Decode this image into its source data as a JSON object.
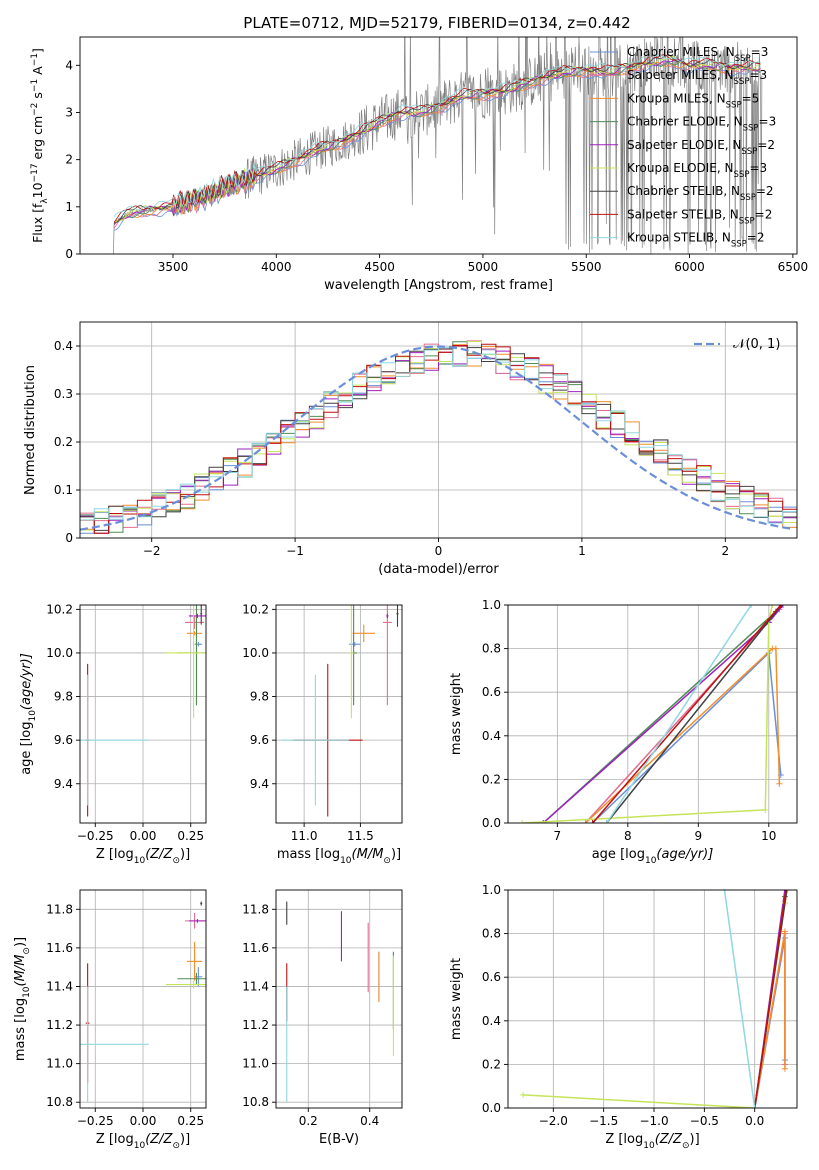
{
  "figure": {
    "title": "PLATE=0712, MJD=52179, FIBERID=0134, z=0.442",
    "colors": {
      "axis": "#000000",
      "grid": "#b0b0b0",
      "spectrum": "#808080",
      "normal_curve": "#6a8fd8"
    }
  },
  "legend_series": [
    {
      "pre": "Chabrier MILES, N",
      "sub": "SSP",
      "post": "=3",
      "color": "#6a8fd8"
    },
    {
      "pre": "Salpeter MILES, N",
      "sub": "SSP",
      "post": "=3",
      "color": "#e36c8f"
    },
    {
      "pre": "Kroupa MILES, N",
      "sub": "SSP",
      "post": "=5",
      "color": "#f28e2b"
    },
    {
      "pre": "Chabrier ELODIE, N",
      "sub": "SSP",
      "post": "=3",
      "color": "#4e8b55"
    },
    {
      "pre": "Salpeter ELODIE, N",
      "sub": "SSP",
      "post": "=2",
      "color": "#a020c0"
    },
    {
      "pre": "Kroupa ELODIE, N",
      "sub": "SSP",
      "post": "=3",
      "color": "#c5e45a"
    },
    {
      "pre": "Chabrier STELIB, N",
      "sub": "SSP",
      "post": "=2",
      "color": "#404040"
    },
    {
      "pre": "Salpeter STELIB, N",
      "sub": "SSP",
      "post": "=2",
      "color": "#c01010"
    },
    {
      "pre": "Kroupa STELIB, N",
      "sub": "SSP",
      "post": "=2",
      "color": "#8fd8e0"
    }
  ],
  "chart_data": [
    {
      "id": "spectrum",
      "type": "line",
      "title": "PLATE=0712, MJD=52179, FIBERID=0134, z=0.442",
      "xlabel": "wavelength [Angstrom, rest frame]",
      "ylabel_parts": {
        "pre": "Flux [f",
        "sub1": "λ",
        "mid": "10",
        "sup1": "−17",
        "post1": " erg cm",
        "sup2": "−2",
        "post2": " s",
        "sup3": "−1",
        "post3": " A",
        "sup4": "−1",
        "post4": "]"
      },
      "xlim": [
        3050,
        6520
      ],
      "ylim": [
        0,
        4.6
      ],
      "xticks": [
        3500,
        4000,
        4500,
        5000,
        5500,
        6000,
        6500
      ],
      "yticks": [
        0,
        1,
        2,
        3,
        4
      ],
      "grid": false,
      "legend_position": "top-right",
      "continuum_knots": {
        "x": [
          3200,
          3280,
          3400,
          3500,
          3600,
          3700,
          3800,
          3900,
          4000,
          4100,
          4200,
          4300,
          4400,
          4500,
          4600,
          4700,
          4800,
          4900,
          5000,
          5100,
          5200,
          5300,
          5400,
          5500,
          5600,
          5700,
          5800,
          5900,
          6000,
          6100,
          6200,
          6300
        ],
        "y": [
          0.6,
          0.85,
          0.95,
          1.0,
          1.15,
          1.3,
          1.5,
          1.65,
          1.8,
          2.0,
          2.2,
          2.35,
          2.55,
          2.8,
          3.0,
          3.0,
          3.15,
          3.35,
          3.4,
          3.45,
          3.6,
          3.75,
          3.85,
          3.9,
          3.85,
          3.95,
          4.05,
          4.1,
          4.0,
          4.0,
          3.95,
          3.95
        ]
      }
    },
    {
      "id": "residuals",
      "type": "line",
      "xlabel": "(data-model)/error",
      "ylabel": "Normed distribution",
      "xlim": [
        -2.5,
        2.5
      ],
      "ylim": [
        0,
        0.45
      ],
      "xticks": [
        -2,
        -1,
        0,
        1,
        2
      ],
      "yticks": [
        0.0,
        0.1,
        0.2,
        0.3,
        0.4
      ],
      "grid": true,
      "legend_label": "𝒩(0, 1)",
      "legend_position": "top-right",
      "normal_mean": 0,
      "normal_sigma": 1
    },
    {
      "id": "age-vs-Z",
      "type": "scatter",
      "xlabel_parts": {
        "pre": "Z [log",
        "sub": "10",
        "post": "(Z/Z",
        "sub2": "⊙",
        "post2": ")]"
      },
      "ylabel_parts": {
        "pre": "age  [log",
        "sub": "10",
        "post": "(age/yr)]"
      },
      "xlim": [
        -0.33,
        0.33
      ],
      "ylim": [
        9.22,
        10.22
      ],
      "xticks": [
        -0.25,
        0.0,
        0.25
      ],
      "xticklabels": [
        "−0.25",
        "0.00",
        "0.25"
      ],
      "yticks": [
        9.4,
        9.6,
        9.8,
        10.0,
        10.2
      ],
      "yticklabels": [
        "9.4",
        "9.6",
        "9.8",
        "10.0",
        "10.2"
      ],
      "grid": true,
      "points": [
        {
          "series": 0,
          "x": 0.29,
          "y": 10.04,
          "xe": 0.02,
          "ye": 0.01
        },
        {
          "series": 1,
          "x": 0.27,
          "y": 10.14,
          "xe": 0.05,
          "ye": 0.03
        },
        {
          "series": 2,
          "x": 0.27,
          "y": 10.09,
          "xe": 0.04,
          "ye": 0.01
        },
        {
          "series": 3,
          "x": 0.28,
          "y": 10.0,
          "xe": 0.1,
          "ye": 0.24
        },
        {
          "series": 4,
          "x": 0.285,
          "y": 10.17,
          "xe": 0.045,
          "ye": 0.01
        },
        {
          "series": 5,
          "x": 0.265,
          "y": 10.0,
          "xe": 0.145,
          "ye": 0.3
        },
        {
          "series": 6,
          "x": 0.305,
          "y": 10.18,
          "xe": 0.005,
          "ye": 0.05
        },
        {
          "series": 7,
          "x": -0.29,
          "y": 9.6,
          "xe": 0.01,
          "ye": 0.35
        },
        {
          "series": 8,
          "x": -0.29,
          "y": 9.6,
          "xe": 0.32,
          "ye": 0.3
        }
      ]
    },
    {
      "id": "age-vs-mass",
      "type": "scatter",
      "xlabel_parts": {
        "pre": "mass [log",
        "sub": "10",
        "post": "(M/M",
        "sub2": "⊙",
        "post2": ")]"
      },
      "ylabel_parts": null,
      "xlim": [
        10.75,
        11.87
      ],
      "ylim": [
        9.22,
        10.22
      ],
      "xticks": [
        11.0,
        11.5
      ],
      "xticklabels": [
        "11.0",
        "11.5"
      ],
      "yticks": [
        9.4,
        9.6,
        9.8,
        10.0,
        10.2
      ],
      "yticklabels": [
        "9.4",
        "9.6",
        "9.8",
        "10.0",
        "10.2"
      ],
      "grid": true,
      "points": [
        {
          "series": 0,
          "x": 11.45,
          "y": 10.04,
          "xe": 0.05,
          "ye": 0.01
        },
        {
          "series": 1,
          "x": 11.74,
          "y": 10.14,
          "xe": 0.04,
          "ye": 0.38
        },
        {
          "series": 2,
          "x": 11.53,
          "y": 10.09,
          "xe": 0.1,
          "ye": 0.04
        },
        {
          "series": 3,
          "x": 11.44,
          "y": 10.0,
          "xe": 0.03,
          "ye": 0.24
        },
        {
          "series": 4,
          "x": 11.74,
          "y": 10.17,
          "xe": 0.01,
          "ye": 0.01
        },
        {
          "series": 5,
          "x": 11.42,
          "y": 10.0,
          "xe": 0.02,
          "ye": 0.3
        },
        {
          "series": 6,
          "x": 11.83,
          "y": 10.18,
          "xe": 0.01,
          "ye": 0.06
        },
        {
          "series": 7,
          "x": 11.21,
          "y": 9.6,
          "xe": 0.31,
          "ye": 0.35
        },
        {
          "series": 8,
          "x": 11.1,
          "y": 9.6,
          "xe": 0.3,
          "ye": 0.3
        }
      ]
    },
    {
      "id": "massweight-vs-age",
      "type": "line",
      "xlabel_parts": {
        "pre": "age  [log",
        "sub": "10",
        "post": "(age/yr)]"
      },
      "ylabel": "mass weight",
      "xlim": [
        6.3,
        10.4
      ],
      "ylim": [
        0,
        1.0
      ],
      "xticks": [
        7,
        8,
        9,
        10
      ],
      "xticklabels": [
        "7",
        "8",
        "9",
        "10"
      ],
      "yticks": [
        0.0,
        0.2,
        0.4,
        0.6,
        0.8,
        1.0
      ],
      "yticklabels": [
        "0.0",
        "0.2",
        "0.4",
        "0.6",
        "0.8",
        "1.0"
      ],
      "grid": true,
      "series_lines": [
        {
          "series": 0,
          "x": [
            7.5,
            10.0,
            10.17
          ],
          "y": [
            0.0,
            0.78,
            0.22
          ]
        },
        {
          "series": 1,
          "x": [
            7.4,
            10.15,
            10.18
          ],
          "y": [
            0.0,
            0.98,
            1.0
          ]
        },
        {
          "series": 2,
          "x": [
            7.4,
            10.05,
            10.1,
            10.15
          ],
          "y": [
            0.0,
            0.8,
            0.8,
            0.18
          ]
        },
        {
          "series": 3,
          "x": [
            6.8,
            10.1,
            10.17
          ],
          "y": [
            0.0,
            0.97,
            1.0
          ]
        },
        {
          "series": 4,
          "x": [
            6.8,
            10.0,
            10.2
          ],
          "y": [
            0.0,
            0.92,
            1.0
          ]
        },
        {
          "series": 5,
          "x": [
            6.5,
            9.95,
            10.0,
            10.05
          ],
          "y": [
            0.0,
            0.06,
            0.93,
            1.0
          ]
        },
        {
          "series": 6,
          "x": [
            7.7,
            10.18
          ],
          "y": [
            0.0,
            1.0
          ]
        },
        {
          "series": 7,
          "x": [
            7.5,
            10.17
          ],
          "y": [
            0.0,
            1.0
          ]
        },
        {
          "series": 8,
          "x": [
            7.7,
            9.75
          ],
          "y": [
            0.0,
            1.0
          ]
        }
      ]
    },
    {
      "id": "mass-vs-Z",
      "type": "scatter",
      "xlabel_parts": {
        "pre": "Z [log",
        "sub": "10",
        "post": "(Z/Z",
        "sub2": "⊙",
        "post2": ")]"
      },
      "ylabel_parts": {
        "pre": "mass [log",
        "sub": "10",
        "post": "(M/M",
        "sub2": "⊙",
        "post2": ")]"
      },
      "xlim": [
        -0.33,
        0.33
      ],
      "ylim": [
        10.77,
        11.9
      ],
      "xticks": [
        -0.25,
        0.0,
        0.25
      ],
      "xticklabels": [
        "−0.25",
        "0.00",
        "0.25"
      ],
      "yticks": [
        10.8,
        11.0,
        11.2,
        11.4,
        11.6,
        11.8
      ],
      "yticklabels": [
        "10.8",
        "11.0",
        "11.2",
        "11.4",
        "11.6",
        "11.8"
      ],
      "grid": true,
      "points": [
        {
          "series": 0,
          "x": 0.29,
          "y": 11.45,
          "xe": 0.02,
          "ye": 0.05
        },
        {
          "series": 1,
          "x": 0.27,
          "y": 11.74,
          "xe": 0.05,
          "ye": 0.04
        },
        {
          "series": 2,
          "x": 0.27,
          "y": 11.53,
          "xe": 0.04,
          "ye": 0.1
        },
        {
          "series": 3,
          "x": 0.28,
          "y": 11.44,
          "xe": 0.1,
          "ye": 0.03
        },
        {
          "series": 4,
          "x": 0.285,
          "y": 11.74,
          "xe": 0.045,
          "ye": 0.01
        },
        {
          "series": 5,
          "x": 0.265,
          "y": 11.41,
          "xe": 0.145,
          "ye": 0.02
        },
        {
          "series": 6,
          "x": 0.305,
          "y": 11.83,
          "xe": 0.005,
          "ye": 0.01
        },
        {
          "series": 7,
          "x": -0.29,
          "y": 11.21,
          "xe": 0.01,
          "ye": 0.31
        },
        {
          "series": 8,
          "x": -0.29,
          "y": 11.1,
          "xe": 0.32,
          "ye": 0.3
        }
      ]
    },
    {
      "id": "mass-vs-EBV",
      "type": "scatter",
      "xlabel": "E(B-V)",
      "ylabel_parts": null,
      "xlim": [
        0.095,
        0.505
      ],
      "ylim": [
        10.77,
        11.9
      ],
      "xticks": [
        0.2,
        0.4
      ],
      "xticklabels": [
        "0.2",
        "0.4"
      ],
      "yticks": [
        10.8,
        11.0,
        11.2,
        11.4,
        11.6,
        11.8
      ],
      "yticklabels": [
        "10.8",
        "11.0",
        "11.2",
        "11.4",
        "11.6",
        "11.8"
      ],
      "grid": true,
      "points": [
        {
          "series": 0,
          "x": 0.43,
          "y": 11.45,
          "xe": 0.0,
          "ye": 0.13
        },
        {
          "series": 1,
          "x": 0.395,
          "y": 11.55,
          "xe": 0.0,
          "ye": 0.18
        },
        {
          "series": 2,
          "x": 0.43,
          "y": 11.45,
          "xe": 0.0,
          "ye": 0.13
        },
        {
          "series": 3,
          "x": 0.477,
          "y": 11.38,
          "xe": 0.0,
          "ye": 0.2
        },
        {
          "series": 4,
          "x": 0.308,
          "y": 11.66,
          "xe": 0.0,
          "ye": 0.13
        },
        {
          "series": 5,
          "x": 0.477,
          "y": 11.3,
          "xe": 0.0,
          "ye": 0.26
        },
        {
          "series": 6,
          "x": 0.13,
          "y": 11.78,
          "xe": 0.0,
          "ye": 0.06
        },
        {
          "series": 7,
          "x": 0.13,
          "y": 11.37,
          "xe": 0.0,
          "ye": 0.15
        },
        {
          "series": 8,
          "x": 0.13,
          "y": 11.1,
          "xe": 0.0,
          "ye": 0.3
        }
      ]
    },
    {
      "id": "massweight-vs-Z",
      "type": "line",
      "xlabel_parts": {
        "pre": "Z [log",
        "sub": "10",
        "post": "(Z/Z",
        "sub2": "⊙",
        "post2": ")]"
      },
      "ylabel": "mass weight",
      "xlim": [
        -2.45,
        0.42
      ],
      "ylim": [
        0,
        1.0
      ],
      "xticks": [
        -2.0,
        -1.5,
        -1.0,
        -0.5,
        0.0
      ],
      "xticklabels": [
        "−2.0",
        "−1.5",
        "−1.0",
        "−0.5",
        "0.0"
      ],
      "yticks": [
        0.0,
        0.2,
        0.4,
        0.6,
        0.8,
        1.0
      ],
      "yticklabels": [
        "0.0",
        "0.2",
        "0.4",
        "0.6",
        "0.8",
        "1.0"
      ],
      "grid": true,
      "series_lines": [
        {
          "series": 0,
          "x": [
            0.0,
            0.3,
            0.3
          ],
          "y": [
            0.0,
            0.78,
            0.22
          ]
        },
        {
          "series": 1,
          "x": [
            0.0,
            0.3,
            0.3
          ],
          "y": [
            0.0,
            0.8,
            0.2
          ]
        },
        {
          "series": 2,
          "x": [
            0.0,
            0.3,
            0.3
          ],
          "y": [
            0.0,
            0.81,
            0.18
          ]
        },
        {
          "series": 3,
          "x": [
            0.0,
            0.3
          ],
          "y": [
            0.0,
            0.97
          ]
        },
        {
          "series": 4,
          "x": [
            0.0,
            0.3
          ],
          "y": [
            0.0,
            1.0
          ]
        },
        {
          "series": 5,
          "x": [
            -2.3,
            0.0,
            0.3
          ],
          "y": [
            0.06,
            0.0,
            0.94
          ]
        },
        {
          "series": 6,
          "x": [
            0.0,
            0.32
          ],
          "y": [
            0.0,
            1.0
          ]
        },
        {
          "series": 7,
          "x": [
            0.0,
            0.31
          ],
          "y": [
            0.0,
            1.0
          ]
        },
        {
          "series": 8,
          "x": [
            -0.3,
            0.0
          ],
          "y": [
            1.0,
            0.0
          ]
        }
      ]
    }
  ]
}
